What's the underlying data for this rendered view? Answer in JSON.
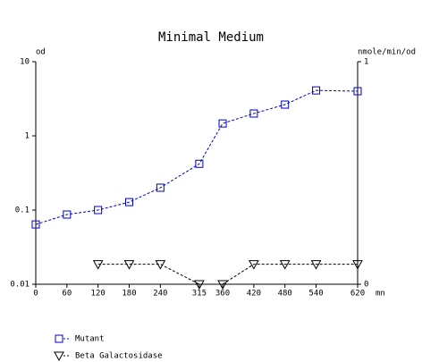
{
  "chart_data": {
    "type": "line",
    "title": "Minimal Medium",
    "ylabel": "od",
    "y2label": "nmole/min/od",
    "xlabel": "mn",
    "x": [
      0,
      60,
      120,
      180,
      240,
      315,
      360,
      420,
      480,
      540,
      620
    ],
    "xlim": [
      0,
      620
    ],
    "xticks": [
      0,
      60,
      120,
      180,
      240,
      315,
      360,
      420,
      480,
      540,
      620
    ],
    "ylog": true,
    "ylim": [
      0.01,
      10
    ],
    "yticks": [
      0.01,
      0.1,
      1,
      10
    ],
    "y2lim": [
      0,
      1
    ],
    "y2ticks": [
      0,
      1
    ],
    "legend": "below",
    "series": [
      {
        "name": "Mutant",
        "color": "#0000cc",
        "marker": "square",
        "values": [
          0.064,
          0.087,
          0.1,
          0.128,
          0.2,
          0.42,
          1.47,
          2.0,
          2.64,
          4.1,
          4.0
        ]
      },
      {
        "name": "Beta Galactosidase",
        "color": "#000000",
        "marker": "triangle-down",
        "axis": "y2",
        "values": [
          null,
          null,
          0.09,
          0.09,
          0.09,
          0,
          0,
          0.09,
          0.09,
          0.09,
          0.09
        ]
      }
    ]
  }
}
